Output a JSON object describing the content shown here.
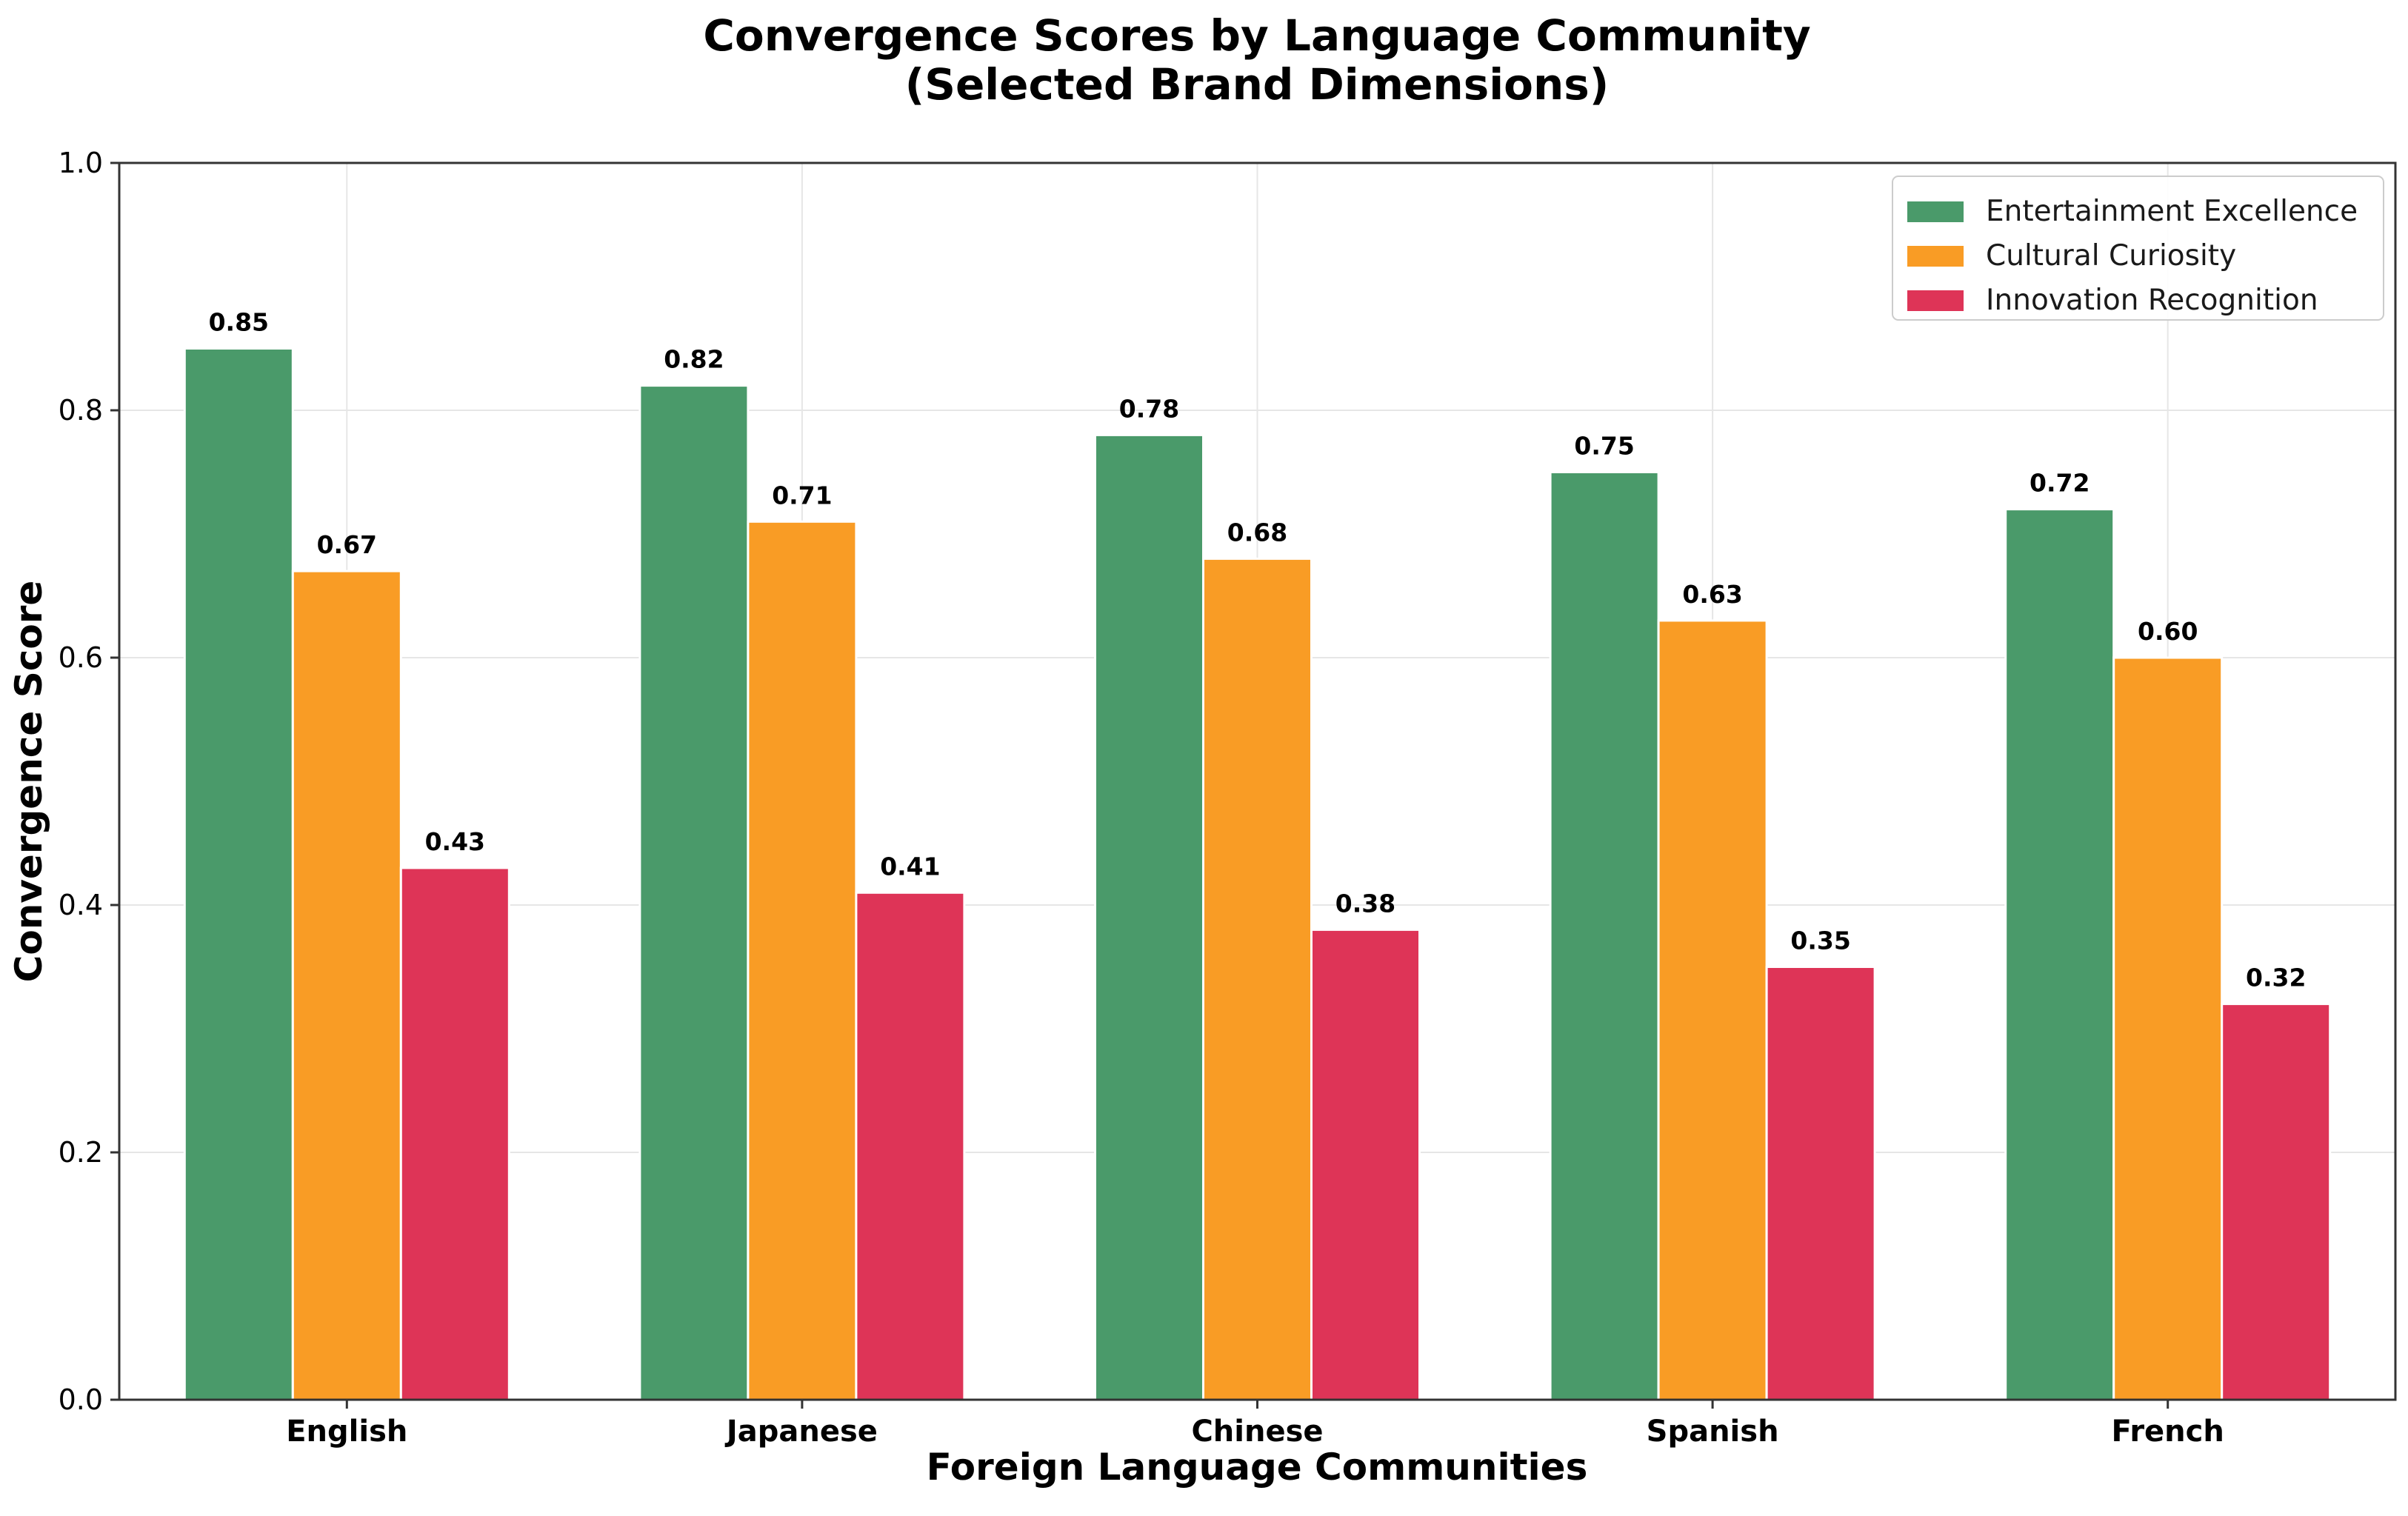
{
  "chart_data": {
    "type": "bar",
    "title": [
      "Convergence Scores by Language Community",
      "(Selected Brand Dimensions)"
    ],
    "xlabel": "Foreign Language Communities",
    "ylabel": "Convergence Score",
    "ylim": [
      0,
      1.0
    ],
    "yticks": [
      "0.0",
      "0.2",
      "0.4",
      "0.6",
      "0.8",
      "1.0"
    ],
    "grid": true,
    "legend_position": "top-right",
    "categories": [
      "English",
      "Japanese",
      "Chinese",
      "Spanish",
      "French"
    ],
    "series": [
      {
        "name": "Entertainment Excellence",
        "color": "#4a9a6a",
        "values": [
          0.85,
          0.82,
          0.78,
          0.75,
          0.72
        ],
        "labels": [
          "0.85",
          "0.82",
          "0.78",
          "0.75",
          "0.72"
        ]
      },
      {
        "name": "Cultural Curiosity",
        "color": "#f99c25",
        "values": [
          0.67,
          0.71,
          0.68,
          0.63,
          0.6
        ],
        "labels": [
          "0.67",
          "0.71",
          "0.68",
          "0.63",
          "0.60"
        ]
      },
      {
        "name": "Innovation Recognition",
        "color": "#de3457",
        "values": [
          0.43,
          0.41,
          0.38,
          0.35,
          0.32
        ],
        "labels": [
          "0.43",
          "0.41",
          "0.38",
          "0.35",
          "0.32"
        ]
      }
    ]
  }
}
